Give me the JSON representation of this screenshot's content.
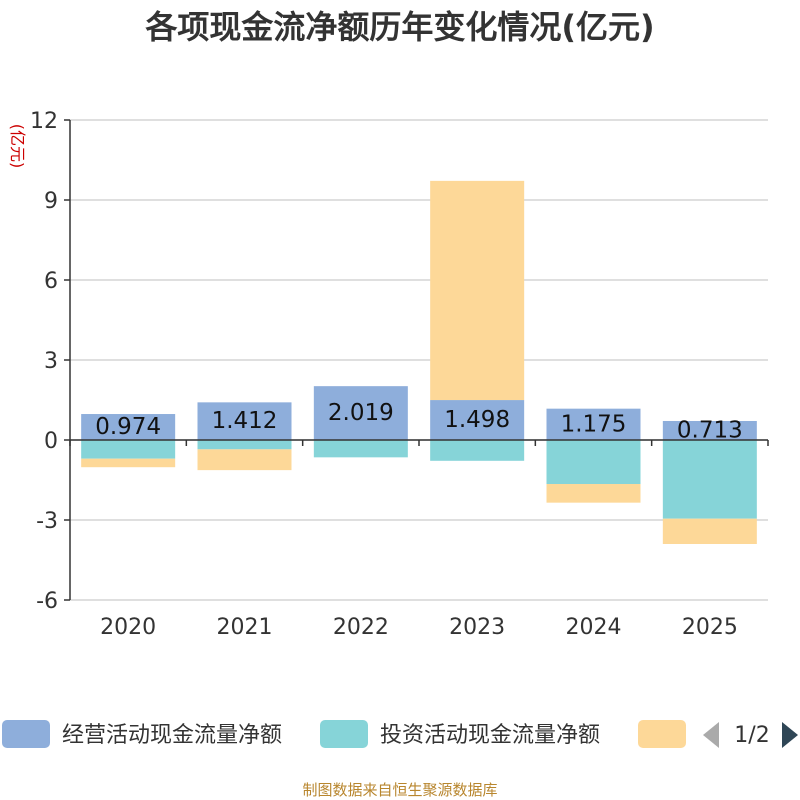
{
  "chart_data": {
    "type": "bar",
    "stacked": true,
    "title": "各项现金流净额历年变化情况(亿元)",
    "ylabel": "(亿元)",
    "ylim": [
      -6,
      12
    ],
    "yticks": [
      -6,
      -3,
      0,
      3,
      6,
      9,
      12
    ],
    "grid": true,
    "categories": [
      "2020",
      "2021",
      "2022",
      "2023",
      "2024",
      "2025"
    ],
    "series": [
      {
        "name": "经营活动现金流量净额",
        "color": "#8eaedb",
        "values": [
          0.974,
          1.412,
          2.019,
          1.498,
          1.175,
          0.713
        ],
        "labels": [
          "0.974",
          "1.412",
          "2.019",
          "1.498",
          "1.175",
          "0.713"
        ]
      },
      {
        "name": "投资活动现金流量净额",
        "color": "#86d4d8",
        "values": [
          -0.7,
          -0.35,
          -0.65,
          -0.78,
          -1.65,
          -2.95
        ]
      },
      {
        "name": "",
        "color": "#fdd898",
        "values": [
          -0.32,
          -0.78,
          0,
          8.22,
          -0.7,
          -0.95
        ]
      }
    ],
    "legend": {
      "position": "bottom",
      "page": "1/2"
    }
  },
  "source": "制图数据来自恒生聚源数据库"
}
